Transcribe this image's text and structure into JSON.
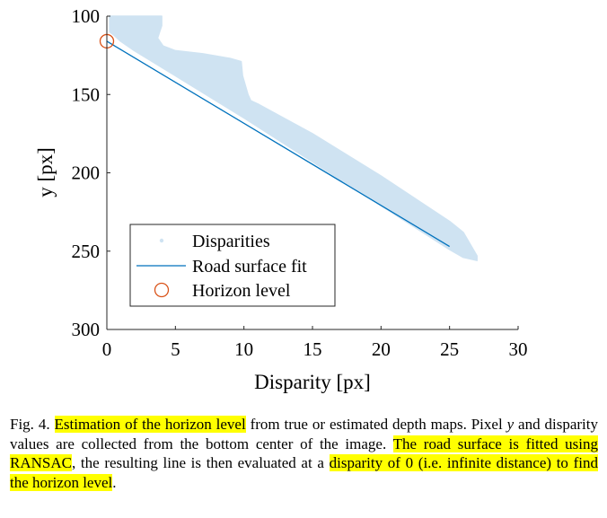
{
  "chart_data": {
    "type": "scatter",
    "xlabel": "Disparity [px]",
    "ylabel": "y [px]",
    "xlim": [
      0,
      30
    ],
    "ylim": [
      100,
      300
    ],
    "y_inverted": true,
    "x_ticks": [
      "0",
      "5",
      "10",
      "15",
      "20",
      "25",
      "30"
    ],
    "y_ticks": [
      "100",
      "150",
      "200",
      "250",
      "300"
    ],
    "legend_position": "bottom-left",
    "series": [
      {
        "name": "Disparities",
        "kind": "scatter-region",
        "color": "#cfe3f2",
        "upper_edge": [
          [
            0.2,
            100
          ],
          [
            4.0,
            100
          ],
          [
            4.0,
            106
          ],
          [
            3.7,
            114
          ],
          [
            4.1,
            119
          ],
          [
            5.0,
            122
          ],
          [
            7.0,
            124
          ],
          [
            9.0,
            127
          ],
          [
            9.8,
            129
          ],
          [
            9.9,
            138
          ],
          [
            10.3,
            150
          ],
          [
            10.5,
            154
          ],
          [
            11.0,
            156
          ],
          [
            15.0,
            175
          ],
          [
            20.0,
            202
          ],
          [
            25.0,
            231
          ],
          [
            26.0,
            238
          ],
          [
            27.0,
            253
          ]
        ],
        "lower_edge": [
          [
            27.0,
            256
          ],
          [
            26.0,
            254
          ],
          [
            25.0,
            249
          ],
          [
            20.0,
            221
          ],
          [
            15.0,
            193
          ],
          [
            10.0,
            165
          ],
          [
            5.0,
            138
          ],
          [
            2.0,
            122
          ],
          [
            1.0,
            116
          ],
          [
            0.5,
            112
          ],
          [
            0.2,
            110
          ]
        ]
      },
      {
        "name": "Road surface fit",
        "kind": "line",
        "color": "#0072bd",
        "x": [
          0,
          25
        ],
        "y": [
          116,
          247
        ]
      },
      {
        "name": "Horizon level",
        "kind": "marker",
        "color": "#d95319",
        "x": [
          0
        ],
        "y": [
          116
        ]
      }
    ]
  },
  "caption": {
    "segments": [
      {
        "text": "Fig. 4.  ",
        "highlight": false
      },
      {
        "text": "Estimation of the horizon level",
        "highlight": true
      },
      {
        "text": " from true or estimated depth maps. Pixel ",
        "highlight": false
      },
      {
        "text": "y",
        "highlight": false,
        "italic": true
      },
      {
        "text": " and disparity values are collected from the bottom center of the image. ",
        "highlight": false
      },
      {
        "text": "The road surface is fitted using RANSAC",
        "highlight": true
      },
      {
        "text": ", the resulting line is then evaluated at a ",
        "highlight": false
      },
      {
        "text": "disparity of 0 (i.e. infinite distance) to find the horizon level",
        "highlight": true
      },
      {
        "text": ".",
        "highlight": false
      }
    ]
  }
}
